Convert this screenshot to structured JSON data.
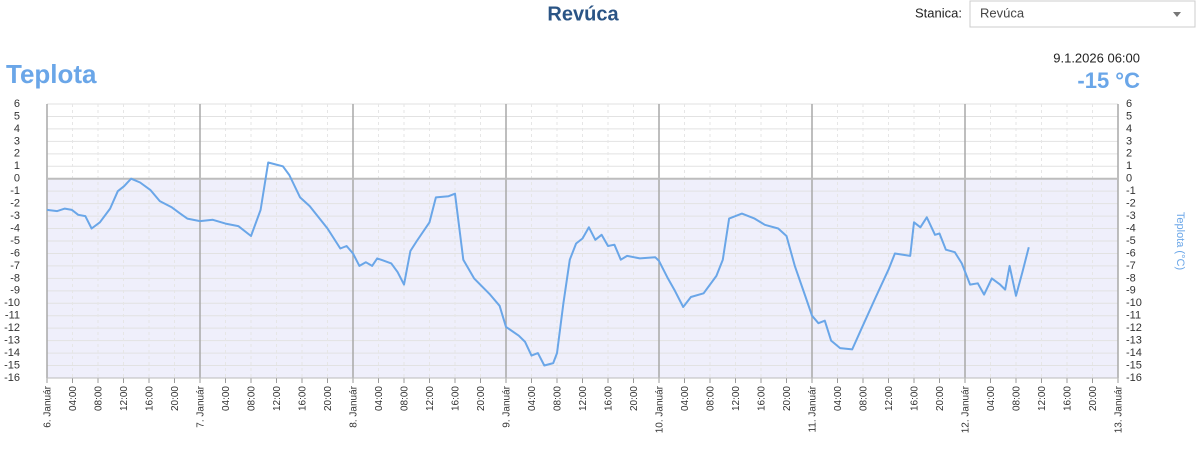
{
  "header": {
    "title": "Revúca"
  },
  "station": {
    "label": "Stanica:",
    "value": "Revúca"
  },
  "current": {
    "time": "9.1.2026 06:00",
    "value": "-15 °C"
  },
  "chart_data": {
    "type": "line",
    "title": "Teplota",
    "y2label": "Teplota (°C)",
    "color": "#6aa6e8",
    "grid": true,
    "x": [
      0,
      1.6,
      2.8,
      3.9,
      4.9,
      6,
      7,
      8.3,
      9.9,
      11.1,
      12.1,
      13.2,
      14.6,
      16.2,
      17.7,
      19.6,
      20.9,
      22,
      24,
      26,
      28,
      30,
      32,
      33.5,
      34.7,
      37,
      38,
      39.7,
      41.2,
      44,
      46,
      47,
      48,
      49,
      50,
      51,
      51.8,
      54,
      55,
      56,
      57,
      58,
      60,
      61,
      63,
      64,
      65.3,
      67,
      69.5,
      71,
      72,
      74,
      75,
      76,
      77,
      78,
      79.4,
      80,
      81,
      82,
      83,
      84,
      85,
      86,
      87,
      88,
      89,
      90,
      91,
      93,
      95.4,
      96,
      97.4,
      98.5,
      99.8,
      101,
      103,
      105,
      106,
      107,
      108,
      109,
      111,
      112.6,
      114.7,
      116,
      117.3,
      119,
      120,
      121,
      122,
      123,
      124.4,
      126.3,
      127.8,
      130,
      132,
      133,
      135.4,
      136,
      137,
      138,
      139.3,
      140,
      141,
      142.4,
      143.5,
      144.8,
      146,
      147,
      148.2,
      149.5,
      150.3,
      151,
      152,
      153,
      154
    ],
    "values": [
      -2.5,
      -2.6,
      -2.4,
      -2.5,
      -2.9,
      -3,
      -4,
      -3.5,
      -2.4,
      -1,
      -0.6,
      0,
      -0.3,
      -0.9,
      -1.8,
      -2.3,
      -2.8,
      -3.2,
      -3.4,
      -3.3,
      -3.6,
      -3.8,
      -4.6,
      -2.5,
      1.3,
      1,
      0.3,
      -1.5,
      -2.2,
      -4,
      -5.6,
      -5.4,
      -6,
      -7,
      -6.7,
      -7,
      -6.4,
      -6.8,
      -7.5,
      -8.5,
      -5.8,
      -5,
      -3.5,
      -1.5,
      -1.4,
      -1.2,
      -6.5,
      -8,
      -9.3,
      -10.2,
      -11.9,
      -12.6,
      -13.1,
      -14.2,
      -14,
      -15,
      -14.8,
      -14,
      -10,
      -6.5,
      -5.2,
      -4.8,
      -3.9,
      -4.9,
      -4.5,
      -5.4,
      -5.3,
      -6.5,
      -6.2,
      -6.4,
      -6.3,
      -6.6,
      -8,
      -9,
      -10.3,
      -9.5,
      -9.2,
      -7.8,
      -6.5,
      -3.2,
      -3,
      -2.8,
      -3.2,
      -3.7,
      -4,
      -4.6,
      -7,
      -9.5,
      -11,
      -11.6,
      -11.4,
      -13,
      -13.6,
      -13.7,
      -12,
      -9.5,
      -7.3,
      -6,
      -6.2,
      -3.5,
      -3.9,
      -3.1,
      -4.5,
      -4.4,
      -5.7,
      -5.9,
      -6.8,
      -8.5,
      -8.4,
      -9.3,
      -8,
      -8.5,
      -8.9,
      -7,
      -9.4,
      -7.5,
      -5.5
    ],
    "xlim": [
      0,
      168
    ],
    "xticks": [
      {
        "value": 0,
        "label": "6. Január"
      },
      {
        "value": 4,
        "label": "04:00"
      },
      {
        "value": 8,
        "label": "08:00"
      },
      {
        "value": 12,
        "label": "12:00"
      },
      {
        "value": 16,
        "label": "16:00"
      },
      {
        "value": 20,
        "label": "20:00"
      },
      {
        "value": 24,
        "label": "7. Január"
      },
      {
        "value": 28,
        "label": "04:00"
      },
      {
        "value": 32,
        "label": "08:00"
      },
      {
        "value": 36,
        "label": "12:00"
      },
      {
        "value": 40,
        "label": "16:00"
      },
      {
        "value": 44,
        "label": "20:00"
      },
      {
        "value": 48,
        "label": "8. Január"
      },
      {
        "value": 52,
        "label": "04:00"
      },
      {
        "value": 56,
        "label": "08:00"
      },
      {
        "value": 60,
        "label": "12:00"
      },
      {
        "value": 64,
        "label": "16:00"
      },
      {
        "value": 68,
        "label": "20:00"
      },
      {
        "value": 72,
        "label": "9. Január"
      },
      {
        "value": 76,
        "label": "04:00"
      },
      {
        "value": 80,
        "label": "08:00"
      },
      {
        "value": 84,
        "label": "12:00"
      },
      {
        "value": 88,
        "label": "16:00"
      },
      {
        "value": 92,
        "label": "20:00"
      },
      {
        "value": 96,
        "label": "10. Január"
      },
      {
        "value": 100,
        "label": "04:00"
      },
      {
        "value": 104,
        "label": "08:00"
      },
      {
        "value": 108,
        "label": "12:00"
      },
      {
        "value": 112,
        "label": "16:00"
      },
      {
        "value": 116,
        "label": "20:00"
      },
      {
        "value": 120,
        "label": "11. Január"
      },
      {
        "value": 124,
        "label": "04:00"
      },
      {
        "value": 128,
        "label": "08:00"
      },
      {
        "value": 132,
        "label": "12:00"
      },
      {
        "value": 136,
        "label": "16:00"
      },
      {
        "value": 140,
        "label": "20:00"
      },
      {
        "value": 144,
        "label": "12. Január"
      },
      {
        "value": 148,
        "label": "04:00"
      },
      {
        "value": 152,
        "label": "08:00"
      },
      {
        "value": 156,
        "label": "12:00"
      },
      {
        "value": 160,
        "label": "16:00"
      },
      {
        "value": 164,
        "label": "20:00"
      },
      {
        "value": 168,
        "label": "13. Január"
      }
    ],
    "ylim": [
      -16,
      6
    ],
    "yticks": [
      -16,
      -15,
      -14,
      -13,
      -12,
      -11,
      -10,
      -9,
      -8,
      -7,
      -6,
      -5,
      -4,
      -3,
      -2,
      -1,
      0,
      1,
      2,
      3,
      4,
      5,
      6
    ],
    "y2lim": [
      -16,
      6
    ],
    "y2ticks": [
      -16,
      -15,
      -14,
      -13,
      -12,
      -11,
      -10,
      -9,
      -8,
      -7,
      -6,
      -5,
      -4,
      -3,
      -2,
      -1,
      0,
      1,
      2,
      3,
      4,
      5,
      6
    ]
  }
}
